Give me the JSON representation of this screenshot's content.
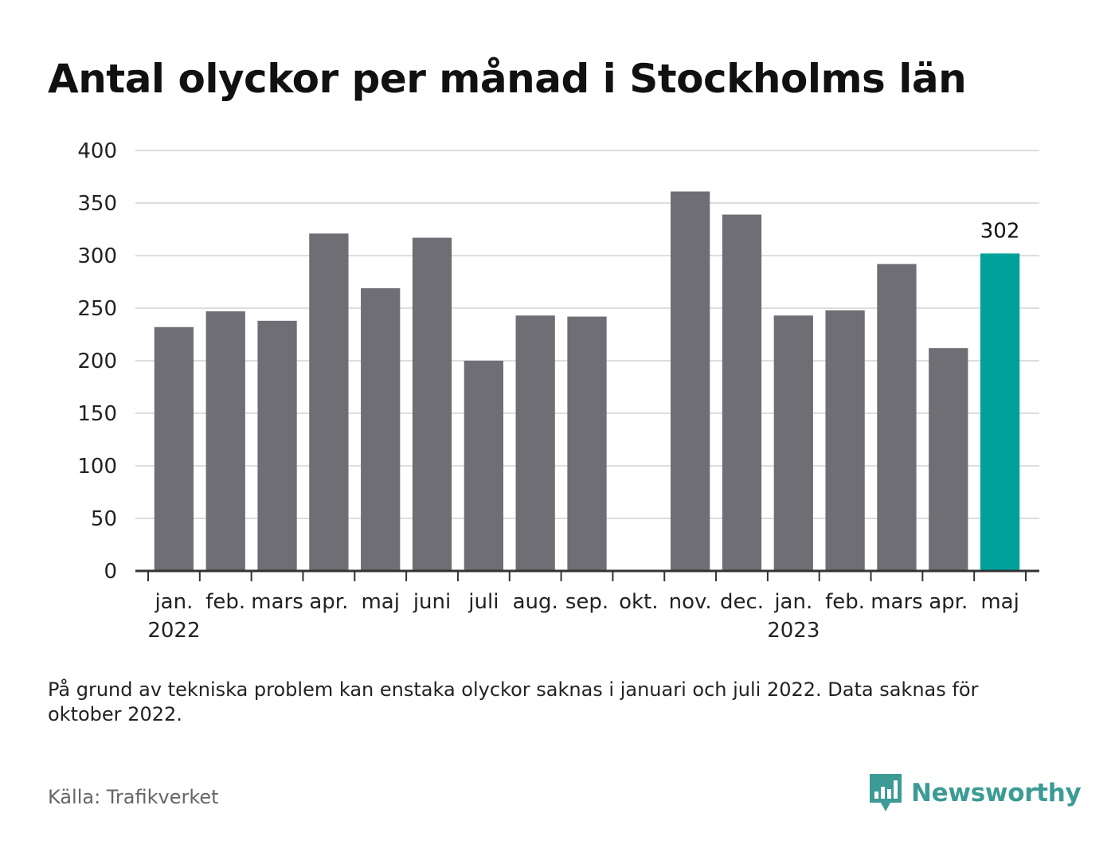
{
  "title": "Antal olyckor per månad i Stockholms län",
  "note": "På grund av tekniska problem kan enstaka olyckor saknas i januari och juli 2022. Data saknas för oktober 2022.",
  "source": "Källa: Trafikverket",
  "brand": {
    "name": "Newsworthy",
    "icon": "bar-chart-bubble-icon"
  },
  "colors": {
    "bar": "#6e6e74",
    "highlight": "#00a19a",
    "grid": "#dddddd",
    "axis": "#333333",
    "brand": "#3c9b95"
  },
  "chart_data": {
    "type": "bar",
    "categories": [
      "jan.",
      "feb.",
      "mars",
      "apr.",
      "maj",
      "juni",
      "juli",
      "aug.",
      "sep.",
      "okt.",
      "nov.",
      "dec.",
      "jan.",
      "feb.",
      "mars",
      "apr.",
      "maj"
    ],
    "year_labels": [
      {
        "index": 0,
        "label": "2022"
      },
      {
        "index": 12,
        "label": "2023"
      }
    ],
    "values": [
      232,
      247,
      238,
      321,
      269,
      317,
      200,
      243,
      242,
      null,
      361,
      339,
      243,
      248,
      292,
      212,
      302
    ],
    "highlight_index": 16,
    "data_labels": [
      {
        "index": 16,
        "label": "302"
      }
    ],
    "yticks": [
      0,
      50,
      100,
      150,
      200,
      250,
      300,
      350,
      400
    ],
    "ylim": [
      0,
      400
    ],
    "grid": true,
    "title": "Antal olyckor per månad i Stockholms län",
    "xlabel": "",
    "ylabel": ""
  }
}
